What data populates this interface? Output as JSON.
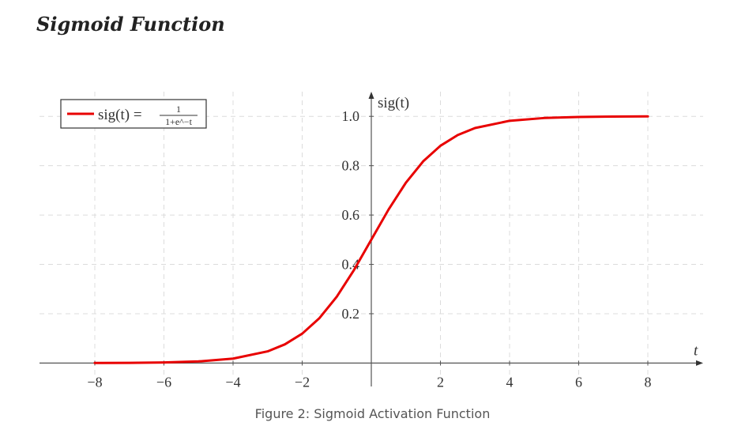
{
  "page": {
    "title": "Sigmoid Function",
    "caption": "Figure 2: Sigmoid Activation Function"
  },
  "chart_data": {
    "type": "line",
    "xlabel": "t",
    "ylabel": "sig(t)",
    "legend": {
      "label": "sig(t) = 1/(1+e^-t)",
      "lhs": "sig(t) =",
      "numerator": "1",
      "denominator": "1+e^−t",
      "placement": "top-left"
    },
    "xlim": [
      -9.6,
      9.6
    ],
    "ylim": [
      -0.05,
      1.1
    ],
    "x_ticks": [
      -8,
      -6,
      -4,
      -2,
      2,
      4,
      6,
      8
    ],
    "x_tick_labels": [
      "−8",
      "−6",
      "−4",
      "−2",
      "2",
      "4",
      "6",
      "8"
    ],
    "y_ticks": [
      0.2,
      0.4,
      0.6,
      0.8,
      1.0
    ],
    "y_tick_labels": [
      "0.2",
      "0.4",
      "0.6",
      "0.8",
      "1.0"
    ],
    "grid": true,
    "series": [
      {
        "name": "sig(t) = 1/(1+e^-t)",
        "color": "#e80000",
        "x": [
          -8,
          -7,
          -6,
          -5,
          -4,
          -3,
          -2.5,
          -2,
          -1.5,
          -1,
          -0.5,
          0,
          0.5,
          1,
          1.5,
          2,
          2.5,
          3,
          4,
          5,
          6,
          7,
          8
        ],
        "y": [
          0.0003,
          0.0009,
          0.0025,
          0.0067,
          0.018,
          0.0474,
          0.0759,
          0.1192,
          0.1824,
          0.2689,
          0.3775,
          0.5,
          0.6225,
          0.7311,
          0.8176,
          0.8808,
          0.9241,
          0.9526,
          0.982,
          0.9933,
          0.9975,
          0.9991,
          0.9997
        ]
      }
    ]
  }
}
